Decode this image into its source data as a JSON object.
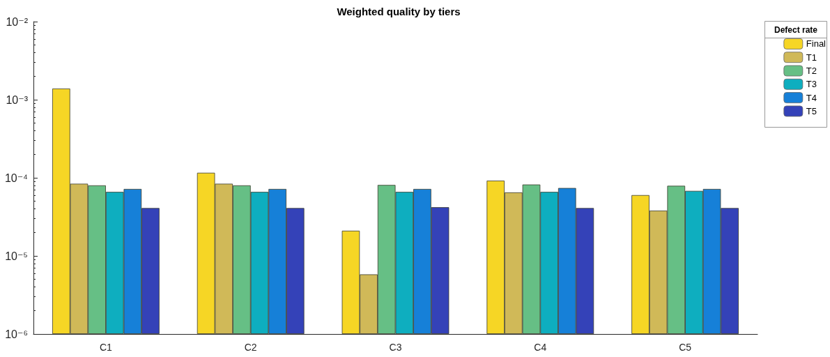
{
  "chart_data": {
    "type": "bar",
    "title": "Weighted quality by tiers",
    "legend_title": "Defect rate",
    "categories": [
      "C1",
      "C2",
      "C3",
      "C4",
      "C5"
    ],
    "series": [
      {
        "name": "Final",
        "color": "#f6d625",
        "values": [
          0.00139,
          0.000116,
          2.1e-05,
          9.2e-05,
          6e-05
        ]
      },
      {
        "name": "T1",
        "color": "#d0b958",
        "values": [
          8.4e-05,
          8.4e-05,
          5.8e-06,
          6.5e-05,
          3.8e-05
        ]
      },
      {
        "name": "T2",
        "color": "#66bf85",
        "values": [
          8e-05,
          8e-05,
          8.1e-05,
          8.2e-05,
          7.9e-05
        ]
      },
      {
        "name": "T3",
        "color": "#0eaebf",
        "values": [
          6.6e-05,
          6.6e-05,
          6.6e-05,
          6.6e-05,
          6.8e-05
        ]
      },
      {
        "name": "T4",
        "color": "#1680d8",
        "values": [
          7.2e-05,
          7.2e-05,
          7.2e-05,
          7.4e-05,
          7.2e-05
        ]
      },
      {
        "name": "T5",
        "color": "#3442b8",
        "values": [
          4.1e-05,
          4.1e-05,
          4.2e-05,
          4.1e-05,
          4.1e-05
        ]
      }
    ],
    "log": "y",
    "ylim": [
      1e-06,
      0.01
    ],
    "yticks": [
      {
        "value": 1e-06,
        "label": "10⁻⁶"
      },
      {
        "value": 1e-05,
        "label": "10⁻⁵"
      },
      {
        "value": 0.0001,
        "label": "10⁻⁴"
      },
      {
        "value": 0.001,
        "label": "10⁻³"
      },
      {
        "value": 0.01,
        "label": "10⁻²"
      }
    ],
    "grid": false,
    "legend": "top right"
  }
}
